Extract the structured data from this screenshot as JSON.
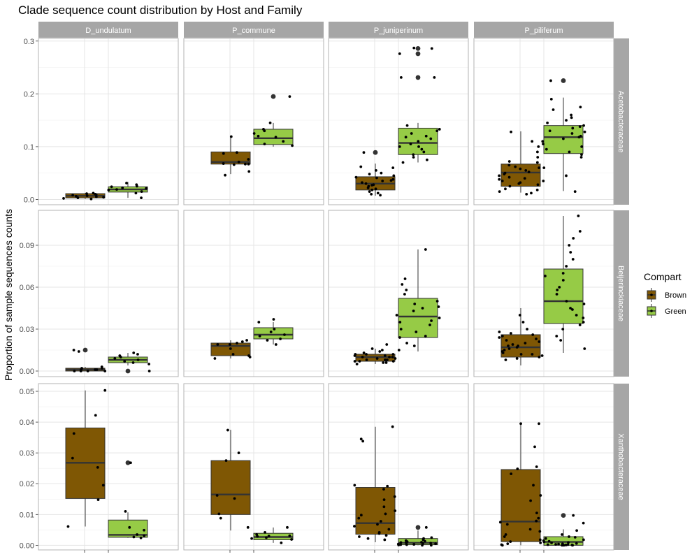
{
  "chart_data": {
    "type": "box",
    "title": "Clade sequence count distribution by Host and Family",
    "ylabel": "Proportion of sample sequences counts",
    "xlabel": "",
    "grid": true,
    "legend": {
      "title": "Compart",
      "position": "right",
      "entries": [
        {
          "name": "Brown",
          "color": "#7F5704"
        },
        {
          "name": "Green",
          "color": "#96CB46"
        }
      ]
    },
    "hosts": [
      "D_undulatum",
      "P_commune",
      "P_juniperinum",
      "P_piliferum"
    ],
    "families": [
      {
        "name": "Acetobacteraceae",
        "ylim": [
          -0.01,
          0.305
        ],
        "ticks": [
          0.0,
          0.1,
          0.2,
          0.3
        ],
        "tick_labels": [
          "0.0",
          "0.1",
          "0.2",
          "0.3"
        ],
        "panels": [
          {
            "host": "D_undulatum",
            "Brown": {
              "q1": 0.003,
              "median": 0.007,
              "q3": 0.011,
              "min": 0.001,
              "max": 0.012,
              "outliers": [],
              "points": [
                0.002,
                0.004,
                0.006,
                0.008,
                0.01,
                0.011,
                0.003,
                0.009,
                0.005,
                0.007,
                0.012,
                0.001
              ]
            },
            "Green": {
              "q1": 0.014,
              "median": 0.019,
              "q3": 0.024,
              "min": 0.003,
              "max": 0.033,
              "outliers": [],
              "points": [
                0.015,
                0.019,
                0.022,
                0.025,
                0.028,
                0.018,
                0.012,
                0.031,
                0.021,
                0.003,
                0.024
              ]
            }
          },
          {
            "host": "P_commune",
            "Brown": {
              "q1": 0.067,
              "median": 0.071,
              "q3": 0.09,
              "min": 0.048,
              "max": 0.12,
              "outliers": [],
              "points": [
                0.119,
                0.053,
                0.071,
                0.089,
                0.066,
                0.067,
                0.076,
                0.046,
                0.087,
                0.067,
                0.068
              ]
            },
            "Green": {
              "q1": 0.104,
              "median": 0.116,
              "q3": 0.133,
              "min": 0.1,
              "max": 0.145,
              "outliers": [
                0.195
              ],
              "points": [
                0.12,
                0.105,
                0.145,
                0.13,
                0.102,
                0.118,
                0.11,
                0.195,
                0.125,
                0.133
              ]
            }
          },
          {
            "host": "P_juniperinum",
            "Brown": {
              "q1": 0.018,
              "median": 0.03,
              "q3": 0.043,
              "min": 0.007,
              "max": 0.068,
              "outliers": [
                0.089
              ],
              "points": [
                0.012,
                0.02,
                0.027,
                0.032,
                0.038,
                0.042,
                0.015,
                0.025,
                0.035,
                0.045,
                0.055,
                0.062,
                0.01,
                0.03,
                0.048,
                0.018,
                0.022,
                0.041,
                0.008,
                0.089,
                0.06,
                0.028,
                0.036,
                0.05
              ]
            },
            "Green": {
              "q1": 0.085,
              "median": 0.107,
              "q3": 0.135,
              "min": 0.07,
              "max": 0.145,
              "outliers": [
                0.231,
                0.276,
                0.286
              ],
              "points": [
                0.09,
                0.1,
                0.11,
                0.12,
                0.13,
                0.08,
                0.075,
                0.14,
                0.095,
                0.125,
                0.105,
                0.085,
                0.115,
                0.231,
                0.231,
                0.286,
                0.276,
                0.287,
                0.07,
                0.1,
                0.133,
                0.118
              ]
            }
          },
          {
            "host": "P_piliferum",
            "Brown": {
              "q1": 0.025,
              "median": 0.051,
              "q3": 0.067,
              "min": 0.013,
              "max": 0.129,
              "outliers": [],
              "points": [
                0.01,
                0.02,
                0.03,
                0.04,
                0.05,
                0.06,
                0.07,
                0.08,
                0.09,
                0.1,
                0.11,
                0.128,
                0.015,
                0.025,
                0.035,
                0.045,
                0.055,
                0.065,
                0.012,
                0.032,
                0.052,
                0.072,
                0.018,
                0.042,
                0.062,
                0.028,
                0.048,
                0.058,
                0.038
              ]
            },
            "Green": {
              "q1": 0.087,
              "median": 0.118,
              "q3": 0.14,
              "min": 0.016,
              "max": 0.193,
              "outliers": [
                0.225
              ],
              "points": [
                0.08,
                0.09,
                0.1,
                0.11,
                0.12,
                0.13,
                0.14,
                0.15,
                0.16,
                0.17,
                0.19,
                0.225,
                0.045,
                0.06,
                0.015,
                0.125,
                0.135,
                0.115,
                0.105,
                0.095,
                0.085,
                0.145,
                0.155,
                0.175,
                0.035,
                0.138,
                0.118,
                0.128
              ]
            }
          }
        ]
      },
      {
        "name": "Beijerinckiaceae",
        "ylim": [
          -0.004,
          0.115
        ],
        "ticks": [
          0.0,
          0.03,
          0.06,
          0.09
        ],
        "tick_labels": [
          "0.00",
          "0.03",
          "0.06",
          "0.09"
        ],
        "panels": [
          {
            "host": "D_undulatum",
            "Brown": {
              "q1": 0.0,
              "median": 0.001,
              "q3": 0.002,
              "min": 0.0,
              "max": 0.003,
              "outliers": [
                0.015
              ],
              "points": [
                0.0,
                0.001,
                0.002,
                0.0,
                0.001,
                0.003,
                0.0,
                0.015,
                0.001,
                0.002,
                0.0,
                0.014
              ]
            },
            "Green": {
              "q1": 0.006,
              "median": 0.008,
              "q3": 0.01,
              "min": 0.004,
              "max": 0.013,
              "outliers": [
                0.0
              ],
              "points": [
                0.006,
                0.008,
                0.01,
                0.012,
                0.007,
                0.009,
                0.011,
                0.005,
                0.0,
                0.013
              ]
            }
          },
          {
            "host": "P_commune",
            "Brown": {
              "q1": 0.011,
              "median": 0.018,
              "q3": 0.02,
              "min": 0.009,
              "max": 0.022,
              "outliers": [],
              "points": [
                0.022,
                0.011,
                0.019,
                0.02,
                0.009,
                0.016,
                0.012,
                0.021,
                0.01,
                0.019
              ]
            },
            "Green": {
              "q1": 0.023,
              "median": 0.026,
              "q3": 0.031,
              "min": 0.019,
              "max": 0.035,
              "outliers": [],
              "points": [
                0.025,
                0.028,
                0.035,
                0.023,
                0.03,
                0.019,
                0.037,
                0.026,
                0.022
              ]
            }
          },
          {
            "host": "P_juniperinum",
            "Brown": {
              "q1": 0.007,
              "median": 0.01,
              "q3": 0.012,
              "min": 0.005,
              "max": 0.016,
              "outliers": [],
              "points": [
                0.006,
                0.007,
                0.008,
                0.009,
                0.01,
                0.011,
                0.012,
                0.013,
                0.015,
                0.016,
                0.005,
                0.008,
                0.01,
                0.007,
                0.012,
                0.006,
                0.009,
                0.011,
                0.019,
                0.014,
                0.008,
                0.01,
                0.012,
                0.007
              ]
            },
            "Green": {
              "q1": 0.024,
              "median": 0.039,
              "q3": 0.052,
              "min": 0.014,
              "max": 0.087,
              "outliers": [],
              "points": [
                0.024,
                0.03,
                0.035,
                0.04,
                0.045,
                0.05,
                0.055,
                0.062,
                0.066,
                0.087,
                0.02,
                0.028,
                0.038,
                0.048,
                0.025,
                0.033,
                0.043,
                0.018,
                0.015,
                0.058,
                0.036,
                0.046
              ]
            }
          },
          {
            "host": "P_piliferum",
            "Brown": {
              "q1": 0.01,
              "median": 0.017,
              "q3": 0.026,
              "min": 0.004,
              "max": 0.045,
              "outliers": [],
              "points": [
                0.008,
                0.01,
                0.012,
                0.015,
                0.018,
                0.02,
                0.022,
                0.025,
                0.027,
                0.03,
                0.035,
                0.04,
                0.011,
                0.014,
                0.017,
                0.019,
                0.024,
                0.028,
                0.009,
                0.013,
                0.016,
                0.021,
                0.026,
                0.012,
                0.018,
                0.023
              ]
            },
            "Green": {
              "q1": 0.034,
              "median": 0.05,
              "q3": 0.073,
              "min": 0.013,
              "max": 0.111,
              "outliers": [],
              "points": [
                0.035,
                0.04,
                0.045,
                0.05,
                0.055,
                0.06,
                0.065,
                0.07,
                0.075,
                0.08,
                0.085,
                0.09,
                0.095,
                0.1,
                0.111,
                0.016,
                0.022,
                0.03,
                0.038,
                0.048,
                0.058,
                0.068,
                0.025,
                0.033,
                0.044
              ]
            }
          }
        ]
      },
      {
        "name": "Xanthobacteraceae",
        "ylim": [
          -0.0015,
          0.0525
        ],
        "ticks": [
          0.0,
          0.01,
          0.02,
          0.03,
          0.04,
          0.05
        ],
        "tick_labels": [
          "0.00",
          "0.01",
          "0.02",
          "0.03",
          "0.04",
          "0.05"
        ],
        "panels": [
          {
            "host": "D_undulatum",
            "Brown": {
              "q1": 0.0152,
              "median": 0.0268,
              "q3": 0.0381,
              "min": 0.0061,
              "max": 0.0503,
              "outliers": [],
              "points": [
                0.0422,
                0.0503,
                0.0253,
                0.0283,
                0.0363,
                0.0148,
                0.0061,
                0.0195
              ]
            },
            "Green": {
              "q1": 0.0026,
              "median": 0.0034,
              "q3": 0.0082,
              "min": 0.0024,
              "max": 0.0107,
              "outliers": [
                0.0268
              ],
              "points": [
                0.0024,
                0.0027,
                0.0035,
                0.0058,
                0.011,
                0.0049,
                0.0268,
                0.0031
              ]
            }
          },
          {
            "host": "P_commune",
            "Brown": {
              "q1": 0.01,
              "median": 0.0165,
              "q3": 0.0275,
              "min": 0.0048,
              "max": 0.0375,
              "outliers": [],
              "points": [
                0.0088,
                0.03,
                0.0374,
                0.0275,
                0.0162,
                0.0152,
                0.0102,
                0.0058
              ]
            },
            "Green": {
              "q1": 0.0018,
              "median": 0.0027,
              "q3": 0.0039,
              "min": 0.0008,
              "max": 0.0058,
              "outliers": [],
              "points": [
                0.0058,
                0.0025,
                0.0008,
                0.0031,
                0.0035,
                0.0042,
                0.0019,
                0.0022,
                0.0029,
                0.003
              ]
            }
          },
          {
            "host": "P_juniperinum",
            "Brown": {
              "q1": 0.0036,
              "median": 0.0072,
              "q3": 0.0188,
              "min": 0.001,
              "max": 0.0385,
              "outliers": [],
              "points": [
                0.0195,
                0.0182,
                0.0385,
                0.0345,
                0.0338,
                0.0158,
                0.0125,
                0.0098,
                0.0088,
                0.0078,
                0.0062,
                0.0052,
                0.0042,
                0.0032,
                0.0028,
                0.0022,
                0.0018,
                0.0112,
                0.0068,
                0.0038,
                0.0192,
                0.0148,
                0.0102
              ]
            },
            "Green": {
              "q1": 0.0002,
              "median": 0.0008,
              "q3": 0.0022,
              "min": 0.0,
              "max": 0.0048,
              "outliers": [
                0.0058
              ],
              "points": [
                0.0,
                0.0002,
                0.0004,
                0.0006,
                0.0008,
                0.001,
                0.0012,
                0.0015,
                0.0018,
                0.0022,
                0.0025,
                0.0002,
                0.0005,
                0.0001,
                0.0058,
                0.0003,
                0.0007,
                0.0013,
                0.0,
                0.0009
              ]
            }
          },
          {
            "host": "P_piliferum",
            "Brown": {
              "q1": 0.0012,
              "median": 0.0077,
              "q3": 0.0246,
              "min": 0.0,
              "max": 0.0395,
              "outliers": [],
              "points": [
                0.0395,
                0.0395,
                0.032,
                0.0248,
                0.0255,
                0.0195,
                0.0145,
                0.0088,
                0.0079,
                0.0068,
                0.0052,
                0.0035,
                0.0028,
                0.0018,
                0.0008,
                0.0002,
                0.0,
                0.0012,
                0.0045,
                0.0105,
                0.0162,
                0.0232,
                0.0005,
                0.0075
              ]
            },
            "Green": {
              "q1": 0.0,
              "median": 0.0011,
              "q3": 0.0028,
              "min": 0.0,
              "max": 0.0052,
              "outliers": [
                0.0097
              ],
              "points": [
                0.0,
                0.0001,
                0.0002,
                0.0003,
                0.0005,
                0.0008,
                0.0011,
                0.0015,
                0.0022,
                0.0028,
                0.0035,
                0.0048,
                0.0097,
                0.0,
                0.0001,
                0.0004,
                0.0009,
                0.0018,
                0.0026,
                0.0072,
                0.0,
                0.0002,
                0.0006,
                0.0013
              ]
            }
          }
        ]
      }
    ]
  }
}
